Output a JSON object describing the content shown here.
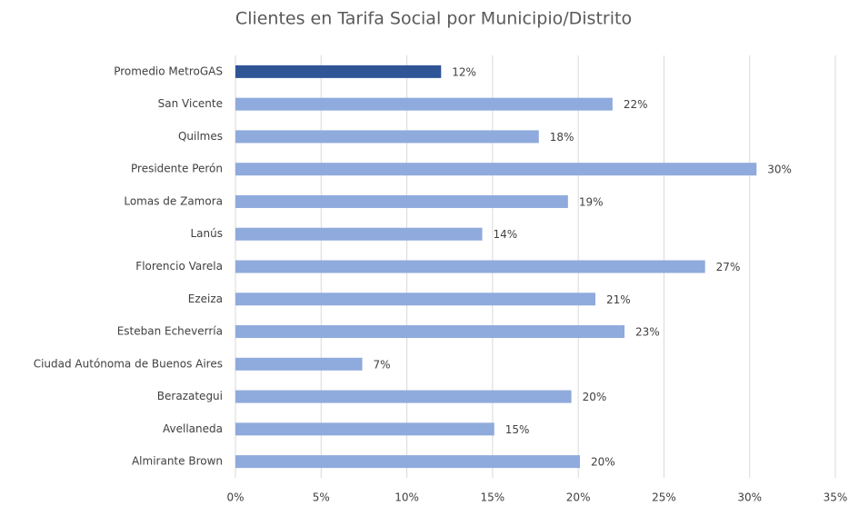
{
  "chart_data": {
    "type": "bar",
    "orientation": "horizontal",
    "title": "Clientes en Tarifa Social por Municipio/Distrito",
    "categories": [
      "Promedio MetroGAS",
      "San Vicente",
      "Quilmes",
      "Presidente Perón",
      "Lomas de Zamora",
      "Lanús",
      "Florencio Varela",
      "Ezeiza",
      "Esteban Echeverría",
      "Ciudad Autónoma de Buenos Aires",
      "Berazategui",
      "Avellaneda",
      "Almirante Brown"
    ],
    "values": [
      12.0,
      22.0,
      17.7,
      30.4,
      19.4,
      14.4,
      27.4,
      21.0,
      22.7,
      7.4,
      19.6,
      15.1,
      20.1
    ],
    "value_labels": [
      "12%",
      "22%",
      "18%",
      "30%",
      "19%",
      "14%",
      "27%",
      "21%",
      "23%",
      "7%",
      "20%",
      "15%",
      "20%"
    ],
    "colors": [
      "#2f5597",
      "#8faadc",
      "#8faadc",
      "#8faadc",
      "#8faadc",
      "#8faadc",
      "#8faadc",
      "#8faadc",
      "#8faadc",
      "#8faadc",
      "#8faadc",
      "#8faadc",
      "#8faadc"
    ],
    "xlim": [
      0,
      35
    ],
    "xticks": [
      {
        "value": 0,
        "label": "0%"
      },
      {
        "value": 5,
        "label": "5%"
      },
      {
        "value": 10,
        "label": "10%"
      },
      {
        "value": 15,
        "label": "15%"
      },
      {
        "value": 20,
        "label": "20%"
      },
      {
        "value": 25,
        "label": "25%"
      },
      {
        "value": 30,
        "label": "30%"
      },
      {
        "value": 35,
        "label": "35%"
      }
    ],
    "grid": true
  }
}
